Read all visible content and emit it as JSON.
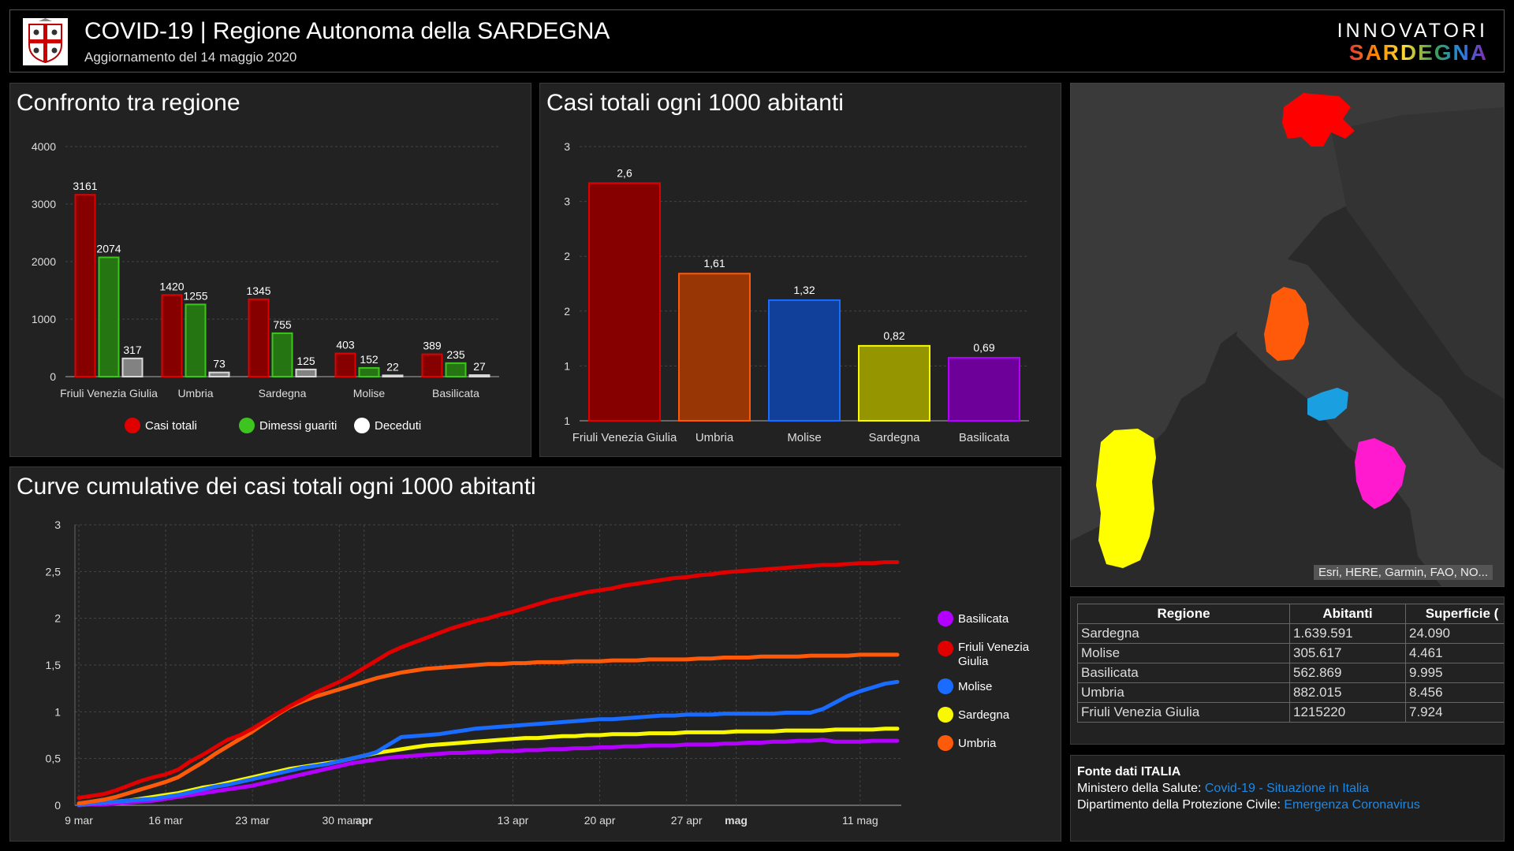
{
  "header": {
    "title": "COVID-19 | Regione Autonoma della SARDEGNA",
    "subtitle": "Aggiornamento del 14 maggio 2020",
    "brand_top": "INNOVATORI",
    "brand_bottom": "SARDEGNA"
  },
  "colors": {
    "red": "#e00000",
    "green": "#3ec41e",
    "white": "#d8d8d8",
    "orange": "#ff5a0a",
    "blue": "#1a6bff",
    "yellow": "#f8f800",
    "purple": "#b400ff",
    "magenta": "#ff1ad0",
    "cyan": "#1aa0e0"
  },
  "panels": {
    "confronto_title": "Confronto tra regione",
    "casi_title": "Casi totali ogni 1000 abitanti",
    "curve_title": "Curve cumulative dei casi totali ogni 1000 abitanti"
  },
  "confronto_legend": [
    "Casi totali",
    "Dimessi guariti",
    "Deceduti"
  ],
  "curve_legend": [
    "Basilicata",
    "Friuli Venezia Giulia",
    "Molise",
    "Sardegna",
    "Umbria"
  ],
  "map": {
    "attribution": "Esri, HERE, Garmin, FAO, NO..."
  },
  "table": {
    "headers": [
      "Regione",
      "Abitanti",
      "Superficie ("
    ],
    "rows": [
      [
        "Sardegna",
        "1.639.591",
        "24.090"
      ],
      [
        "Molise",
        "305.617",
        "4.461"
      ],
      [
        "Basilicata",
        "562.869",
        "9.995"
      ],
      [
        "Umbria",
        "882.015",
        "8.456"
      ],
      [
        "Friuli Venezia Giulia",
        "1215220",
        "7.924"
      ]
    ]
  },
  "sources": {
    "heading": "Fonte dati ITALIA",
    "line1_label": "Ministero della Salute:",
    "line1_link": "Covid-19 - Situazione in Italia",
    "line2_label": "Dipartimento della Protezione Civile:",
    "line2_link": "Emergenza Coronavirus"
  },
  "chart_data": [
    {
      "type": "bar",
      "categories": [
        "Friuli Venezia Giulia",
        "Umbria",
        "Sardegna",
        "Molise",
        "Basilicata"
      ],
      "series": [
        {
          "name": "Casi totali",
          "values": [
            3161,
            1420,
            1345,
            403,
            389
          ]
        },
        {
          "name": "Dimessi guariti",
          "values": [
            2074,
            1255,
            755,
            152,
            235
          ]
        },
        {
          "name": "Deceduti",
          "values": [
            317,
            73,
            125,
            22,
            27
          ]
        }
      ],
      "ylim": [
        0,
        4000
      ],
      "yticks": [
        0,
        1000,
        2000,
        3000,
        4000
      ],
      "grid": true,
      "legend": "bottom"
    },
    {
      "type": "bar",
      "categories": [
        "Friuli Venezia Giulia",
        "Umbria",
        "Molise",
        "Sardegna",
        "Basilicata"
      ],
      "values": [
        2.6,
        1.61,
        1.32,
        0.82,
        0.69
      ],
      "value_labels": [
        "2,6",
        "1,61",
        "1,32",
        "0,82",
        "0,69"
      ],
      "bar_colors": [
        "#e00000",
        "#ff5a0a",
        "#1a6bff",
        "#f8f800",
        "#b400ff"
      ],
      "ylim": [
        0,
        3
      ],
      "ytick_labels": [
        "1",
        "1",
        "2",
        "2",
        "3",
        "3"
      ],
      "grid": true
    },
    {
      "type": "line",
      "x": [
        "9 mar",
        "10 mar",
        "11 mar",
        "12 mar",
        "13 mar",
        "14 mar",
        "15 mar",
        "16 mar",
        "17 mar",
        "18 mar",
        "19 mar",
        "20 mar",
        "21 mar",
        "22 mar",
        "23 mar",
        "24 mar",
        "25 mar",
        "26 mar",
        "27 mar",
        "28 mar",
        "29 mar",
        "30 mar",
        "31 mar",
        "1 apr",
        "2 apr",
        "3 apr",
        "4 apr",
        "5 apr",
        "6 apr",
        "7 apr",
        "8 apr",
        "9 apr",
        "10 apr",
        "11 apr",
        "12 apr",
        "13 apr",
        "14 apr",
        "15 apr",
        "16 apr",
        "17 apr",
        "18 apr",
        "19 apr",
        "20 apr",
        "21 apr",
        "22 apr",
        "23 apr",
        "24 apr",
        "25 apr",
        "26 apr",
        "27 apr",
        "28 apr",
        "29 apr",
        "30 apr",
        "1 mag",
        "2 mag",
        "3 mag",
        "4 mag",
        "5 mag",
        "6 mag",
        "7 mag",
        "8 mag",
        "9 mag",
        "10 mag",
        "11 mag",
        "12 mag",
        "13 mag",
        "14 mag"
      ],
      "xtick_labels": [
        "9 mar",
        "16 mar",
        "23 mar",
        "30 mar",
        "apr",
        "13 apr",
        "20 apr",
        "27 apr",
        "mag",
        "11 mag"
      ],
      "series": [
        {
          "name": "Friuli Venezia Giulia",
          "values": [
            0.08,
            0.1,
            0.12,
            0.16,
            0.21,
            0.26,
            0.3,
            0.33,
            0.38,
            0.47,
            0.54,
            0.62,
            0.7,
            0.75,
            0.82,
            0.9,
            0.98,
            1.06,
            1.13,
            1.2,
            1.26,
            1.32,
            1.39,
            1.47,
            1.55,
            1.63,
            1.69,
            1.74,
            1.79,
            1.84,
            1.89,
            1.93,
            1.97,
            2.0,
            2.04,
            2.07,
            2.11,
            2.15,
            2.19,
            2.22,
            2.25,
            2.28,
            2.3,
            2.32,
            2.35,
            2.37,
            2.39,
            2.41,
            2.43,
            2.44,
            2.46,
            2.47,
            2.49,
            2.5,
            2.51,
            2.52,
            2.53,
            2.54,
            2.55,
            2.56,
            2.57,
            2.57,
            2.58,
            2.59,
            2.59,
            2.6,
            2.6
          ]
        },
        {
          "name": "Umbria",
          "values": [
            0.02,
            0.04,
            0.06,
            0.09,
            0.13,
            0.17,
            0.21,
            0.25,
            0.3,
            0.38,
            0.46,
            0.55,
            0.63,
            0.71,
            0.79,
            0.88,
            0.97,
            1.05,
            1.11,
            1.16,
            1.2,
            1.24,
            1.28,
            1.32,
            1.36,
            1.39,
            1.42,
            1.44,
            1.46,
            1.47,
            1.48,
            1.49,
            1.5,
            1.51,
            1.51,
            1.52,
            1.52,
            1.53,
            1.53,
            1.53,
            1.54,
            1.54,
            1.54,
            1.55,
            1.55,
            1.55,
            1.56,
            1.56,
            1.56,
            1.56,
            1.57,
            1.57,
            1.58,
            1.58,
            1.58,
            1.59,
            1.59,
            1.59,
            1.59,
            1.6,
            1.6,
            1.6,
            1.6,
            1.61,
            1.61,
            1.61,
            1.61
          ]
        },
        {
          "name": "Molise",
          "values": [
            0.01,
            0.02,
            0.03,
            0.04,
            0.05,
            0.06,
            0.07,
            0.09,
            0.11,
            0.14,
            0.17,
            0.2,
            0.22,
            0.25,
            0.28,
            0.31,
            0.34,
            0.37,
            0.4,
            0.42,
            0.44,
            0.47,
            0.5,
            0.53,
            0.57,
            0.65,
            0.73,
            0.74,
            0.75,
            0.76,
            0.78,
            0.8,
            0.82,
            0.83,
            0.84,
            0.85,
            0.86,
            0.87,
            0.88,
            0.89,
            0.9,
            0.91,
            0.92,
            0.92,
            0.93,
            0.94,
            0.95,
            0.96,
            0.96,
            0.97,
            0.97,
            0.97,
            0.98,
            0.98,
            0.98,
            0.98,
            0.98,
            0.99,
            0.99,
            0.99,
            1.03,
            1.1,
            1.17,
            1.22,
            1.26,
            1.3,
            1.32
          ]
        },
        {
          "name": "Sardegna",
          "values": [
            0.01,
            0.02,
            0.03,
            0.04,
            0.05,
            0.07,
            0.09,
            0.11,
            0.13,
            0.16,
            0.19,
            0.21,
            0.24,
            0.27,
            0.3,
            0.33,
            0.36,
            0.39,
            0.41,
            0.43,
            0.45,
            0.47,
            0.5,
            0.53,
            0.56,
            0.58,
            0.6,
            0.62,
            0.64,
            0.65,
            0.66,
            0.67,
            0.68,
            0.69,
            0.7,
            0.71,
            0.72,
            0.72,
            0.73,
            0.74,
            0.74,
            0.75,
            0.75,
            0.76,
            0.76,
            0.76,
            0.77,
            0.77,
            0.77,
            0.78,
            0.78,
            0.78,
            0.78,
            0.79,
            0.79,
            0.79,
            0.79,
            0.8,
            0.8,
            0.8,
            0.8,
            0.81,
            0.81,
            0.81,
            0.81,
            0.82,
            0.82
          ]
        },
        {
          "name": "Basilicata",
          "values": [
            0.0,
            0.01,
            0.01,
            0.02,
            0.03,
            0.04,
            0.05,
            0.07,
            0.09,
            0.11,
            0.13,
            0.15,
            0.17,
            0.19,
            0.21,
            0.24,
            0.27,
            0.3,
            0.33,
            0.36,
            0.39,
            0.42,
            0.45,
            0.47,
            0.49,
            0.51,
            0.52,
            0.53,
            0.54,
            0.55,
            0.56,
            0.56,
            0.57,
            0.57,
            0.58,
            0.58,
            0.59,
            0.59,
            0.6,
            0.6,
            0.61,
            0.61,
            0.62,
            0.62,
            0.63,
            0.63,
            0.64,
            0.64,
            0.64,
            0.65,
            0.65,
            0.65,
            0.66,
            0.66,
            0.67,
            0.67,
            0.68,
            0.68,
            0.69,
            0.69,
            0.7,
            0.68,
            0.68,
            0.68,
            0.69,
            0.69,
            0.69
          ]
        }
      ],
      "ylim": [
        0,
        3
      ],
      "ytick_labels": [
        "0",
        "0,5",
        "1",
        "1,5",
        "2",
        "2,5",
        "3"
      ],
      "grid": true,
      "legend": "right"
    }
  ]
}
